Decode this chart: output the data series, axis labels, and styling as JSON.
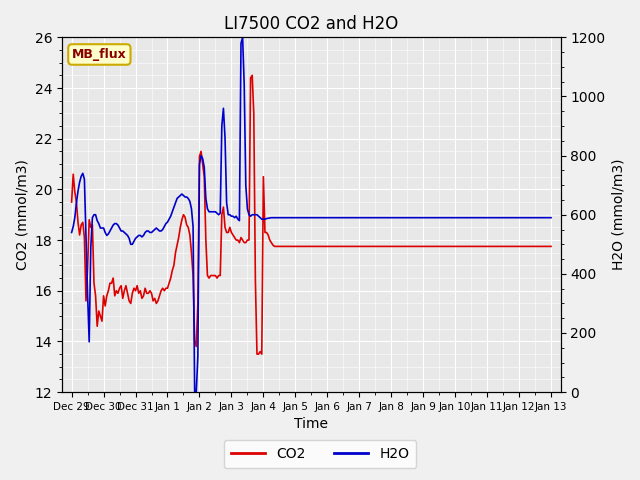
{
  "title": "LI7500 CO2 and H2O",
  "ylabel_left": "CO2 (mmol/m3)",
  "ylabel_right": "H2O (mmol/m3)",
  "xlabel": "Time",
  "ylim_left": [
    12,
    26
  ],
  "ylim_right": [
    0,
    1200
  ],
  "annotation_text": "MB_flux",
  "background_color": "#e8e8e8",
  "co2_color": "#dd0000",
  "h2o_color": "#0000cc",
  "legend_co2": "CO2",
  "legend_h2o": "H2O",
  "tick_labels": [
    "Dec 29",
    "Dec 30",
    "Dec 31",
    "Jan 1",
    "Jan 2",
    "Jan 3",
    "Jan 4",
    "Jan 5",
    "Jan 6",
    "Jan 7",
    "Jan 8",
    "Jan 9",
    "Jan 10",
    "Jan 11",
    "Jan 12",
    "Jan 13"
  ],
  "tick_positions": [
    0,
    1,
    2,
    3,
    4,
    5,
    6,
    7,
    8,
    9,
    10,
    11,
    12,
    13,
    14,
    15
  ],
  "co2_data": [
    [
      0.0,
      19.5
    ],
    [
      0.05,
      20.6
    ],
    [
      0.1,
      19.9
    ],
    [
      0.15,
      19.5
    ],
    [
      0.2,
      18.7
    ],
    [
      0.25,
      18.2
    ],
    [
      0.3,
      18.6
    ],
    [
      0.35,
      18.7
    ],
    [
      0.4,
      18.1
    ],
    [
      0.45,
      15.6
    ],
    [
      0.5,
      16.9
    ],
    [
      0.55,
      18.8
    ],
    [
      0.6,
      18.5
    ],
    [
      0.65,
      18.6
    ],
    [
      0.7,
      16.3
    ],
    [
      0.75,
      15.8
    ],
    [
      0.8,
      14.6
    ],
    [
      0.85,
      15.2
    ],
    [
      0.9,
      15.0
    ],
    [
      0.95,
      14.8
    ],
    [
      1.0,
      15.8
    ],
    [
      1.05,
      15.4
    ],
    [
      1.1,
      15.8
    ],
    [
      1.15,
      16.0
    ],
    [
      1.2,
      16.3
    ],
    [
      1.25,
      16.3
    ],
    [
      1.3,
      16.5
    ],
    [
      1.35,
      15.8
    ],
    [
      1.4,
      16.0
    ],
    [
      1.45,
      15.9
    ],
    [
      1.5,
      16.1
    ],
    [
      1.55,
      16.2
    ],
    [
      1.6,
      15.7
    ],
    [
      1.65,
      16.0
    ],
    [
      1.7,
      16.2
    ],
    [
      1.75,
      15.9
    ],
    [
      1.8,
      15.6
    ],
    [
      1.85,
      15.5
    ],
    [
      1.9,
      15.9
    ],
    [
      1.95,
      16.1
    ],
    [
      2.0,
      16.0
    ],
    [
      2.05,
      16.2
    ],
    [
      2.1,
      15.9
    ],
    [
      2.15,
      16.0
    ],
    [
      2.2,
      15.7
    ],
    [
      2.25,
      15.8
    ],
    [
      2.3,
      16.1
    ],
    [
      2.35,
      15.9
    ],
    [
      2.4,
      15.9
    ],
    [
      2.45,
      16.0
    ],
    [
      2.5,
      15.9
    ],
    [
      2.55,
      15.6
    ],
    [
      2.6,
      15.7
    ],
    [
      2.65,
      15.5
    ],
    [
      2.7,
      15.6
    ],
    [
      2.75,
      15.8
    ],
    [
      2.8,
      16.0
    ],
    [
      2.85,
      16.1
    ],
    [
      2.9,
      16.0
    ],
    [
      2.95,
      16.1
    ],
    [
      3.0,
      16.1
    ],
    [
      3.05,
      16.3
    ],
    [
      3.1,
      16.5
    ],
    [
      3.15,
      16.8
    ],
    [
      3.2,
      17.0
    ],
    [
      3.25,
      17.5
    ],
    [
      3.3,
      17.8
    ],
    [
      3.35,
      18.1
    ],
    [
      3.4,
      18.5
    ],
    [
      3.45,
      18.8
    ],
    [
      3.5,
      19.0
    ],
    [
      3.55,
      18.9
    ],
    [
      3.6,
      18.6
    ],
    [
      3.65,
      18.5
    ],
    [
      3.7,
      18.2
    ],
    [
      3.75,
      17.5
    ],
    [
      3.8,
      16.6
    ],
    [
      3.85,
      14.0
    ],
    [
      3.9,
      13.8
    ],
    [
      3.95,
      15.5
    ],
    [
      4.0,
      21.3
    ],
    [
      4.05,
      21.5
    ],
    [
      4.1,
      21.0
    ],
    [
      4.15,
      20.5
    ],
    [
      4.2,
      18.0
    ],
    [
      4.25,
      16.6
    ],
    [
      4.3,
      16.5
    ],
    [
      4.35,
      16.6
    ],
    [
      4.4,
      16.6
    ],
    [
      4.45,
      16.6
    ],
    [
      4.5,
      16.6
    ],
    [
      4.55,
      16.5
    ],
    [
      4.6,
      16.6
    ],
    [
      4.65,
      16.6
    ],
    [
      4.7,
      19.0
    ],
    [
      4.75,
      19.3
    ],
    [
      4.8,
      18.5
    ],
    [
      4.85,
      18.3
    ],
    [
      4.9,
      18.3
    ],
    [
      4.95,
      18.5
    ],
    [
      5.0,
      18.3
    ],
    [
      5.05,
      18.2
    ],
    [
      5.1,
      18.1
    ],
    [
      5.15,
      18.0
    ],
    [
      5.2,
      18.0
    ],
    [
      5.25,
      17.9
    ],
    [
      5.3,
      18.1
    ],
    [
      5.35,
      18.0
    ],
    [
      5.4,
      17.9
    ],
    [
      5.45,
      17.9
    ],
    [
      5.5,
      18.0
    ],
    [
      5.55,
      18.0
    ],
    [
      5.6,
      24.4
    ],
    [
      5.65,
      24.5
    ],
    [
      5.7,
      23.0
    ],
    [
      5.75,
      16.4
    ],
    [
      5.8,
      13.5
    ],
    [
      5.85,
      13.5
    ],
    [
      5.9,
      13.6
    ],
    [
      5.95,
      13.5
    ],
    [
      6.0,
      20.5
    ],
    [
      6.05,
      18.3
    ],
    [
      6.1,
      18.3
    ],
    [
      6.15,
      18.2
    ],
    [
      6.2,
      18.0
    ],
    [
      6.25,
      17.9
    ],
    [
      6.3,
      17.8
    ],
    [
      6.35,
      17.75
    ],
    [
      6.4,
      17.75
    ],
    [
      6.45,
      17.75
    ],
    [
      6.5,
      17.75
    ],
    [
      6.55,
      17.75
    ],
    [
      6.6,
      17.75
    ],
    [
      6.65,
      17.75
    ],
    [
      6.7,
      17.75
    ],
    [
      6.75,
      17.75
    ],
    [
      6.8,
      17.75
    ],
    [
      6.85,
      17.75
    ],
    [
      6.9,
      17.75
    ],
    [
      6.95,
      17.75
    ],
    [
      7.0,
      17.75
    ],
    [
      7.5,
      17.75
    ],
    [
      8.0,
      17.75
    ],
    [
      8.5,
      17.75
    ],
    [
      9.0,
      17.75
    ],
    [
      9.5,
      17.75
    ],
    [
      10.0,
      17.75
    ],
    [
      10.5,
      17.75
    ],
    [
      11.0,
      17.75
    ],
    [
      11.5,
      17.75
    ],
    [
      12.0,
      17.75
    ],
    [
      12.5,
      17.75
    ],
    [
      13.0,
      17.75
    ],
    [
      13.5,
      17.75
    ],
    [
      14.0,
      17.75
    ],
    [
      14.5,
      17.75
    ],
    [
      15.0,
      17.75
    ]
  ],
  "h2o_data": [
    [
      0.0,
      540
    ],
    [
      0.05,
      560
    ],
    [
      0.1,
      590
    ],
    [
      0.15,
      640
    ],
    [
      0.2,
      680
    ],
    [
      0.25,
      710
    ],
    [
      0.3,
      730
    ],
    [
      0.35,
      740
    ],
    [
      0.4,
      720
    ],
    [
      0.45,
      520
    ],
    [
      0.5,
      330
    ],
    [
      0.55,
      170
    ],
    [
      0.6,
      490
    ],
    [
      0.65,
      590
    ],
    [
      0.7,
      600
    ],
    [
      0.75,
      600
    ],
    [
      0.8,
      580
    ],
    [
      0.85,
      570
    ],
    [
      0.9,
      555
    ],
    [
      0.95,
      555
    ],
    [
      1.0,
      555
    ],
    [
      1.05,
      540
    ],
    [
      1.1,
      530
    ],
    [
      1.15,
      535
    ],
    [
      1.2,
      545
    ],
    [
      1.25,
      555
    ],
    [
      1.3,
      565
    ],
    [
      1.35,
      570
    ],
    [
      1.4,
      570
    ],
    [
      1.45,
      565
    ],
    [
      1.5,
      555
    ],
    [
      1.55,
      545
    ],
    [
      1.6,
      545
    ],
    [
      1.65,
      540
    ],
    [
      1.7,
      535
    ],
    [
      1.75,
      530
    ],
    [
      1.8,
      520
    ],
    [
      1.85,
      500
    ],
    [
      1.9,
      500
    ],
    [
      1.95,
      510
    ],
    [
      2.0,
      520
    ],
    [
      2.05,
      525
    ],
    [
      2.1,
      530
    ],
    [
      2.15,
      530
    ],
    [
      2.2,
      525
    ],
    [
      2.25,
      530
    ],
    [
      2.3,
      540
    ],
    [
      2.35,
      545
    ],
    [
      2.4,
      545
    ],
    [
      2.45,
      540
    ],
    [
      2.5,
      540
    ],
    [
      2.55,
      545
    ],
    [
      2.6,
      550
    ],
    [
      2.65,
      555
    ],
    [
      2.7,
      550
    ],
    [
      2.75,
      545
    ],
    [
      2.8,
      545
    ],
    [
      2.85,
      550
    ],
    [
      2.9,
      560
    ],
    [
      2.95,
      570
    ],
    [
      3.0,
      575
    ],
    [
      3.05,
      585
    ],
    [
      3.1,
      595
    ],
    [
      3.15,
      610
    ],
    [
      3.2,
      625
    ],
    [
      3.25,
      640
    ],
    [
      3.3,
      655
    ],
    [
      3.35,
      660
    ],
    [
      3.4,
      665
    ],
    [
      3.45,
      670
    ],
    [
      3.5,
      665
    ],
    [
      3.55,
      660
    ],
    [
      3.6,
      660
    ],
    [
      3.65,
      655
    ],
    [
      3.7,
      645
    ],
    [
      3.75,
      620
    ],
    [
      3.8,
      560
    ],
    [
      3.85,
      0
    ],
    [
      3.9,
      0
    ],
    [
      3.95,
      120
    ],
    [
      4.0,
      770
    ],
    [
      4.05,
      800
    ],
    [
      4.1,
      790
    ],
    [
      4.15,
      760
    ],
    [
      4.2,
      655
    ],
    [
      4.25,
      620
    ],
    [
      4.3,
      610
    ],
    [
      4.35,
      610
    ],
    [
      4.4,
      610
    ],
    [
      4.45,
      610
    ],
    [
      4.5,
      610
    ],
    [
      4.55,
      605
    ],
    [
      4.6,
      600
    ],
    [
      4.65,
      605
    ],
    [
      4.7,
      900
    ],
    [
      4.75,
      960
    ],
    [
      4.8,
      860
    ],
    [
      4.85,
      640
    ],
    [
      4.9,
      600
    ],
    [
      4.95,
      600
    ],
    [
      5.0,
      595
    ],
    [
      5.05,
      595
    ],
    [
      5.1,
      590
    ],
    [
      5.15,
      595
    ],
    [
      5.2,
      585
    ],
    [
      5.25,
      580
    ],
    [
      5.3,
      1180
    ],
    [
      5.35,
      1200
    ],
    [
      5.4,
      1040
    ],
    [
      5.45,
      700
    ],
    [
      5.5,
      620
    ],
    [
      5.55,
      600
    ],
    [
      5.6,
      595
    ],
    [
      5.65,
      600
    ],
    [
      5.7,
      600
    ],
    [
      5.75,
      600
    ],
    [
      5.8,
      600
    ],
    [
      5.85,
      595
    ],
    [
      5.9,
      590
    ],
    [
      5.95,
      585
    ],
    [
      6.0,
      585
    ],
    [
      6.05,
      585
    ],
    [
      6.1,
      587
    ],
    [
      6.15,
      588
    ],
    [
      6.2,
      589
    ],
    [
      6.25,
      590
    ],
    [
      6.3,
      590
    ],
    [
      6.35,
      590
    ],
    [
      6.4,
      590
    ],
    [
      6.45,
      590
    ],
    [
      6.5,
      590
    ],
    [
      6.55,
      590
    ],
    [
      6.6,
      590
    ],
    [
      6.65,
      590
    ],
    [
      6.7,
      590
    ],
    [
      6.75,
      590
    ],
    [
      6.8,
      590
    ],
    [
      6.85,
      590
    ],
    [
      6.9,
      590
    ],
    [
      6.95,
      590
    ],
    [
      7.0,
      590
    ],
    [
      7.5,
      590
    ],
    [
      8.0,
      590
    ],
    [
      8.5,
      590
    ],
    [
      9.0,
      590
    ],
    [
      9.5,
      590
    ],
    [
      10.0,
      590
    ],
    [
      10.5,
      590
    ],
    [
      11.0,
      590
    ],
    [
      11.5,
      590
    ],
    [
      12.0,
      590
    ],
    [
      12.5,
      590
    ],
    [
      13.0,
      590
    ],
    [
      13.5,
      590
    ],
    [
      14.0,
      590
    ],
    [
      14.5,
      590
    ],
    [
      15.0,
      590
    ]
  ]
}
